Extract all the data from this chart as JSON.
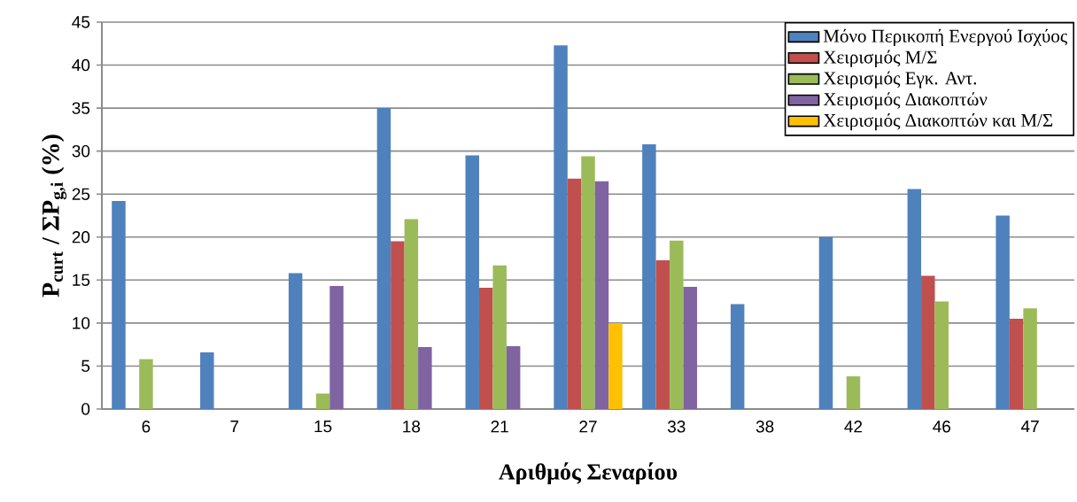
{
  "chart_data": {
    "type": "bar",
    "xlabel": "Αριθμός Σεναρίου",
    "ylabel": "P$_{curt}$ / ΣP$_{g,i}$ (%)",
    "categories": [
      "6",
      "7",
      "15",
      "18",
      "21",
      "27",
      "33",
      "38",
      "42",
      "46",
      "47"
    ],
    "series": [
      {
        "name": "Μόνο Περικοπή Ενεργού Ισχύος",
        "color": "#4f81bd",
        "values": [
          24.2,
          6.6,
          15.8,
          35,
          29.5,
          42.3,
          30.8,
          12.2,
          20,
          25.6,
          22.5
        ]
      },
      {
        "name": "Χειρισμός Μ/Σ",
        "color": "#c0504d",
        "values": [
          null,
          null,
          null,
          19.5,
          14.1,
          26.8,
          17.3,
          null,
          null,
          15.5,
          10.5
        ]
      },
      {
        "name": "Χειρισμός Εγκ. Αντ.",
        "color": "#9bbb59",
        "values": [
          5.8,
          null,
          1.8,
          22.1,
          16.7,
          29.4,
          19.6,
          null,
          3.8,
          12.5,
          11.7
        ]
      },
      {
        "name": "Χειρισμός Διακοπτών",
        "color": "#8064a2",
        "values": [
          null,
          null,
          14.3,
          7.2,
          7.3,
          26.5,
          14.2,
          null,
          null,
          null,
          null
        ]
      },
      {
        "name": "Χειρισμός Διακοπτών και Μ/Σ",
        "color": "#ffc000",
        "values": [
          null,
          null,
          null,
          null,
          null,
          10,
          null,
          null,
          null,
          null,
          null
        ]
      }
    ],
    "ylim": [
      0,
      45
    ],
    "yticks": [
      0,
      5,
      10,
      15,
      20,
      25,
      30,
      35,
      40,
      45
    ],
    "grid": "y",
    "legend": "top right"
  }
}
